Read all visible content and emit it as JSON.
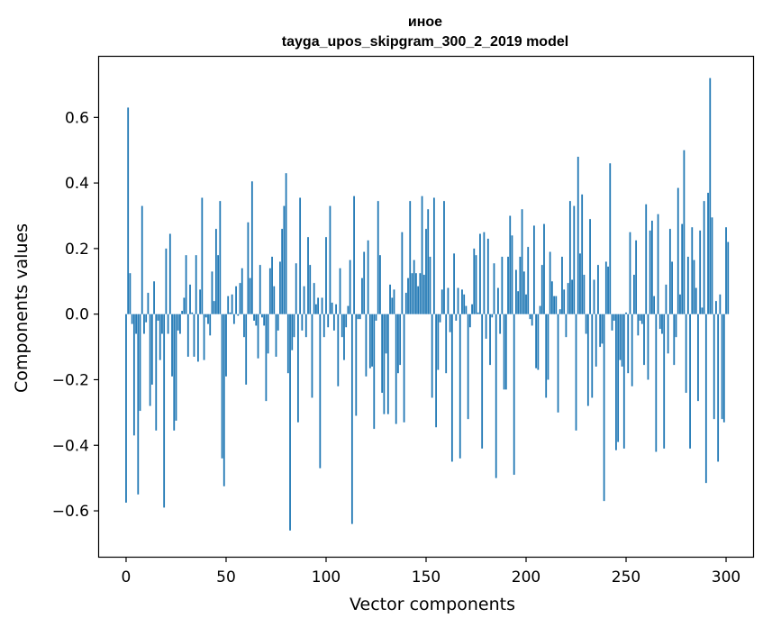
{
  "chart_data": {
    "type": "bar",
    "title": "иное",
    "subtitle": "tayga_upos_skipgram_300_2_2019 model",
    "xlabel": "Vector components",
    "ylabel": "Components values",
    "xlim": [
      -13.5,
      313.5
    ],
    "ylim": [
      -0.74,
      0.785
    ],
    "x_ticks": [
      0,
      50,
      100,
      150,
      200,
      250,
      300
    ],
    "y_ticks": [
      -0.6,
      -0.4,
      -0.2,
      0.0,
      0.2,
      0.4,
      0.6
    ],
    "x_tick_labels": [
      "0",
      "50",
      "100",
      "150",
      "200",
      "250",
      "300"
    ],
    "y_tick_labels": [
      "−0.6",
      "−0.4",
      "−0.2",
      "0.0",
      "0.2",
      "0.4",
      "0.6"
    ],
    "bar_color": "#1f77b4",
    "series": [
      {
        "name": "иное",
        "values": [
          -0.575,
          0.63,
          0.125,
          -0.03,
          -0.37,
          -0.06,
          -0.55,
          -0.295,
          0.33,
          -0.06,
          -0.025,
          0.065,
          -0.28,
          -0.215,
          0.1,
          -0.355,
          -0.02,
          -0.14,
          -0.06,
          -0.59,
          0.2,
          -0.06,
          0.245,
          -0.19,
          -0.355,
          -0.325,
          -0.05,
          -0.06,
          0.01,
          0.05,
          0.18,
          -0.13,
          0.09,
          0.005,
          -0.13,
          0.18,
          -0.145,
          0.075,
          0.355,
          -0.14,
          -0.01,
          -0.03,
          -0.065,
          0.13,
          0.04,
          0.26,
          0.18,
          0.345,
          -0.44,
          -0.525,
          -0.19,
          0.055,
          0.005,
          0.06,
          -0.03,
          0.085,
          -0.005,
          0.095,
          0.14,
          -0.07,
          -0.215,
          0.28,
          0.11,
          0.405,
          -0.02,
          -0.035,
          -0.135,
          0.15,
          -0.01,
          -0.035,
          -0.265,
          -0.12,
          0.14,
          0.175,
          0.085,
          -0.13,
          -0.05,
          0.16,
          0.26,
          0.33,
          0.43,
          -0.18,
          -0.66,
          -0.11,
          -0.07,
          0.155,
          -0.33,
          0.355,
          -0.05,
          0.085,
          -0.07,
          0.235,
          0.15,
          -0.255,
          0.095,
          0.03,
          0.05,
          -0.47,
          0.05,
          -0.07,
          0.235,
          -0.04,
          0.33,
          0.035,
          -0.05,
          0.03,
          -0.22,
          0.14,
          -0.07,
          -0.14,
          -0.04,
          0.025,
          0.165,
          -0.64,
          0.36,
          -0.31,
          -0.015,
          -0.015,
          0.11,
          0.19,
          -0.19,
          0.225,
          -0.165,
          -0.16,
          -0.35,
          -0.02,
          0.345,
          0.18,
          -0.24,
          -0.305,
          -0.12,
          -0.305,
          0.09,
          0.05,
          0.075,
          -0.335,
          -0.18,
          -0.155,
          0.25,
          -0.33,
          0.065,
          0.11,
          0.345,
          0.125,
          0.165,
          0.125,
          0.085,
          0.125,
          0.36,
          0.12,
          0.26,
          0.32,
          0.175,
          -0.255,
          0.355,
          -0.345,
          -0.17,
          -0.025,
          0.075,
          0.345,
          -0.18,
          0.08,
          -0.055,
          -0.45,
          0.185,
          -0.02,
          0.08,
          -0.44,
          0.075,
          0.06,
          0.025,
          -0.32,
          -0.04,
          0.03,
          0.2,
          0.18,
          0.005,
          0.245,
          -0.41,
          0.25,
          -0.075,
          0.23,
          -0.155,
          -0.01,
          0.155,
          -0.5,
          0.08,
          -0.06,
          0.175,
          -0.23,
          -0.23,
          0.175,
          0.3,
          0.24,
          -0.49,
          0.135,
          0.07,
          0.175,
          0.32,
          0.13,
          0.06,
          0.205,
          -0.015,
          -0.035,
          0.27,
          -0.165,
          -0.17,
          0.025,
          0.15,
          0.275,
          -0.255,
          -0.2,
          0.19,
          0.1,
          0.055,
          0.055,
          -0.3,
          0.015,
          0.175,
          0.075,
          -0.07,
          0.095,
          0.345,
          0.105,
          0.33,
          -0.355,
          0.48,
          0.185,
          0.365,
          0.12,
          -0.06,
          -0.28,
          0.29,
          -0.255,
          0.105,
          -0.16,
          0.15,
          -0.1,
          -0.09,
          -0.57,
          0.16,
          0.145,
          0.46,
          -0.05,
          -0.02,
          -0.415,
          -0.39,
          -0.14,
          -0.16,
          -0.41,
          0.005,
          -0.18,
          0.25,
          -0.22,
          0.12,
          0.225,
          -0.065,
          -0.02,
          -0.03,
          -0.155,
          0.335,
          -0.2,
          0.255,
          0.285,
          0.055,
          -0.42,
          0.305,
          -0.045,
          -0.06,
          -0.41,
          0.09,
          -0.12,
          0.26,
          0.16,
          -0.155,
          -0.07,
          0.385,
          0.06,
          0.275,
          0.5,
          -0.24,
          0.175,
          -0.41,
          0.265,
          0.165,
          0.08,
          -0.265,
          0.255,
          0.02,
          0.345,
          -0.515,
          0.37,
          0.72,
          0.295,
          -0.32,
          0.04,
          -0.45,
          0.06,
          -0.32,
          -0.33,
          0.265,
          0.22
        ]
      }
    ]
  }
}
